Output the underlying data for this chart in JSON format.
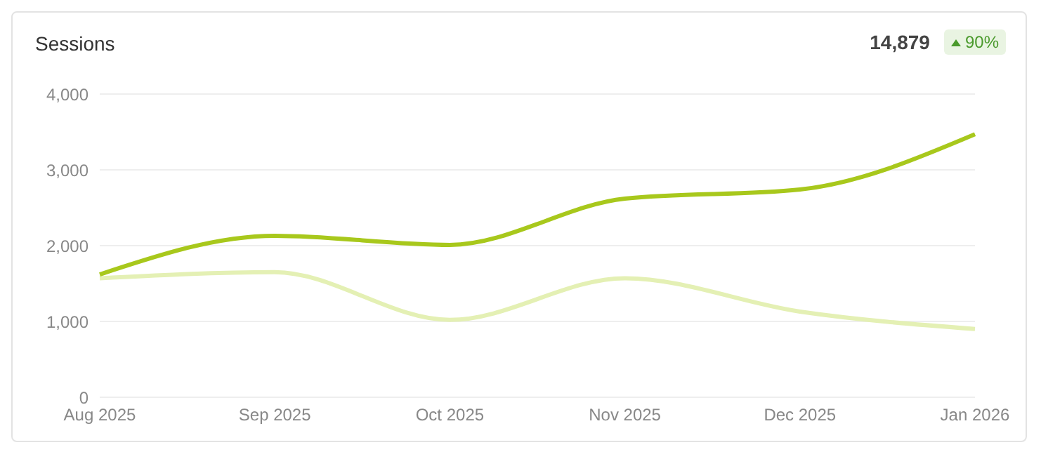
{
  "chart_data": {
    "type": "line",
    "title": "Sessions",
    "annotations": [
      "14,879",
      "90%"
    ],
    "categories": [
      "Aug 2025",
      "Sep 2025",
      "Oct 2025",
      "Nov 2025",
      "Dec 2025",
      "Jan 2026"
    ],
    "series": [
      {
        "color": "#a8c81c",
        "values": [
          1620,
          2130,
          2010,
          2620,
          2740,
          3470
        ]
      },
      {
        "color": "#e4f0b4",
        "values": [
          1570,
          1650,
          1020,
          1570,
          1130,
          900
        ]
      }
    ],
    "ylim": [
      0,
      4000
    ],
    "yticks": [
      0,
      {
        "value": 1000,
        "label": "1,000"
      },
      {
        "value": 2000,
        "label": "2,000"
      },
      {
        "value": 3000,
        "label": "3,000"
      },
      {
        "value": 4000,
        "label": "4,000"
      }
    ],
    "grid": "y",
    "marker": "none",
    "line_style": "solid"
  }
}
